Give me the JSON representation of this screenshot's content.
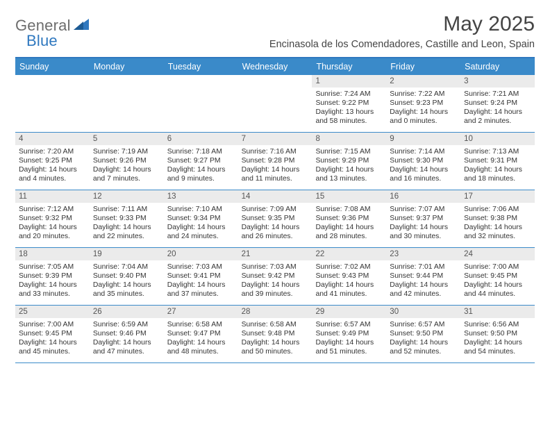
{
  "logo": {
    "textA": "General",
    "textB": "Blue"
  },
  "title": "May 2025",
  "location": "Encinasola de los Comendadores, Castille and Leon, Spain",
  "colors": {
    "accent": "#3a8ac9",
    "accentBorder": "#2f78bf",
    "dayNumBg": "#ebebeb",
    "text": "#333333",
    "logoGray": "#6d6d6d",
    "logoBlue": "#2f78bf"
  },
  "dayHeaders": [
    "Sunday",
    "Monday",
    "Tuesday",
    "Wednesday",
    "Thursday",
    "Friday",
    "Saturday"
  ],
  "weeks": [
    [
      {
        "n": "",
        "sr": "",
        "ss": "",
        "dl": ""
      },
      {
        "n": "",
        "sr": "",
        "ss": "",
        "dl": ""
      },
      {
        "n": "",
        "sr": "",
        "ss": "",
        "dl": ""
      },
      {
        "n": "",
        "sr": "",
        "ss": "",
        "dl": ""
      },
      {
        "n": "1",
        "sr": "Sunrise: 7:24 AM",
        "ss": "Sunset: 9:22 PM",
        "dl": "Daylight: 13 hours and 58 minutes."
      },
      {
        "n": "2",
        "sr": "Sunrise: 7:22 AM",
        "ss": "Sunset: 9:23 PM",
        "dl": "Daylight: 14 hours and 0 minutes."
      },
      {
        "n": "3",
        "sr": "Sunrise: 7:21 AM",
        "ss": "Sunset: 9:24 PM",
        "dl": "Daylight: 14 hours and 2 minutes."
      }
    ],
    [
      {
        "n": "4",
        "sr": "Sunrise: 7:20 AM",
        "ss": "Sunset: 9:25 PM",
        "dl": "Daylight: 14 hours and 4 minutes."
      },
      {
        "n": "5",
        "sr": "Sunrise: 7:19 AM",
        "ss": "Sunset: 9:26 PM",
        "dl": "Daylight: 14 hours and 7 minutes."
      },
      {
        "n": "6",
        "sr": "Sunrise: 7:18 AM",
        "ss": "Sunset: 9:27 PM",
        "dl": "Daylight: 14 hours and 9 minutes."
      },
      {
        "n": "7",
        "sr": "Sunrise: 7:16 AM",
        "ss": "Sunset: 9:28 PM",
        "dl": "Daylight: 14 hours and 11 minutes."
      },
      {
        "n": "8",
        "sr": "Sunrise: 7:15 AM",
        "ss": "Sunset: 9:29 PM",
        "dl": "Daylight: 14 hours and 13 minutes."
      },
      {
        "n": "9",
        "sr": "Sunrise: 7:14 AM",
        "ss": "Sunset: 9:30 PM",
        "dl": "Daylight: 14 hours and 16 minutes."
      },
      {
        "n": "10",
        "sr": "Sunrise: 7:13 AM",
        "ss": "Sunset: 9:31 PM",
        "dl": "Daylight: 14 hours and 18 minutes."
      }
    ],
    [
      {
        "n": "11",
        "sr": "Sunrise: 7:12 AM",
        "ss": "Sunset: 9:32 PM",
        "dl": "Daylight: 14 hours and 20 minutes."
      },
      {
        "n": "12",
        "sr": "Sunrise: 7:11 AM",
        "ss": "Sunset: 9:33 PM",
        "dl": "Daylight: 14 hours and 22 minutes."
      },
      {
        "n": "13",
        "sr": "Sunrise: 7:10 AM",
        "ss": "Sunset: 9:34 PM",
        "dl": "Daylight: 14 hours and 24 minutes."
      },
      {
        "n": "14",
        "sr": "Sunrise: 7:09 AM",
        "ss": "Sunset: 9:35 PM",
        "dl": "Daylight: 14 hours and 26 minutes."
      },
      {
        "n": "15",
        "sr": "Sunrise: 7:08 AM",
        "ss": "Sunset: 9:36 PM",
        "dl": "Daylight: 14 hours and 28 minutes."
      },
      {
        "n": "16",
        "sr": "Sunrise: 7:07 AM",
        "ss": "Sunset: 9:37 PM",
        "dl": "Daylight: 14 hours and 30 minutes."
      },
      {
        "n": "17",
        "sr": "Sunrise: 7:06 AM",
        "ss": "Sunset: 9:38 PM",
        "dl": "Daylight: 14 hours and 32 minutes."
      }
    ],
    [
      {
        "n": "18",
        "sr": "Sunrise: 7:05 AM",
        "ss": "Sunset: 9:39 PM",
        "dl": "Daylight: 14 hours and 33 minutes."
      },
      {
        "n": "19",
        "sr": "Sunrise: 7:04 AM",
        "ss": "Sunset: 9:40 PM",
        "dl": "Daylight: 14 hours and 35 minutes."
      },
      {
        "n": "20",
        "sr": "Sunrise: 7:03 AM",
        "ss": "Sunset: 9:41 PM",
        "dl": "Daylight: 14 hours and 37 minutes."
      },
      {
        "n": "21",
        "sr": "Sunrise: 7:03 AM",
        "ss": "Sunset: 9:42 PM",
        "dl": "Daylight: 14 hours and 39 minutes."
      },
      {
        "n": "22",
        "sr": "Sunrise: 7:02 AM",
        "ss": "Sunset: 9:43 PM",
        "dl": "Daylight: 14 hours and 41 minutes."
      },
      {
        "n": "23",
        "sr": "Sunrise: 7:01 AM",
        "ss": "Sunset: 9:44 PM",
        "dl": "Daylight: 14 hours and 42 minutes."
      },
      {
        "n": "24",
        "sr": "Sunrise: 7:00 AM",
        "ss": "Sunset: 9:45 PM",
        "dl": "Daylight: 14 hours and 44 minutes."
      }
    ],
    [
      {
        "n": "25",
        "sr": "Sunrise: 7:00 AM",
        "ss": "Sunset: 9:45 PM",
        "dl": "Daylight: 14 hours and 45 minutes."
      },
      {
        "n": "26",
        "sr": "Sunrise: 6:59 AM",
        "ss": "Sunset: 9:46 PM",
        "dl": "Daylight: 14 hours and 47 minutes."
      },
      {
        "n": "27",
        "sr": "Sunrise: 6:58 AM",
        "ss": "Sunset: 9:47 PM",
        "dl": "Daylight: 14 hours and 48 minutes."
      },
      {
        "n": "28",
        "sr": "Sunrise: 6:58 AM",
        "ss": "Sunset: 9:48 PM",
        "dl": "Daylight: 14 hours and 50 minutes."
      },
      {
        "n": "29",
        "sr": "Sunrise: 6:57 AM",
        "ss": "Sunset: 9:49 PM",
        "dl": "Daylight: 14 hours and 51 minutes."
      },
      {
        "n": "30",
        "sr": "Sunrise: 6:57 AM",
        "ss": "Sunset: 9:50 PM",
        "dl": "Daylight: 14 hours and 52 minutes."
      },
      {
        "n": "31",
        "sr": "Sunrise: 6:56 AM",
        "ss": "Sunset: 9:50 PM",
        "dl": "Daylight: 14 hours and 54 minutes."
      }
    ]
  ]
}
